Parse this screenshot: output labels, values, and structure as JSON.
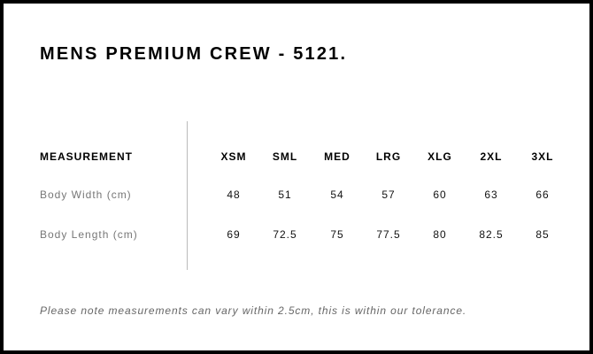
{
  "title": "MENS PREMIUM CREW - 5121.",
  "table": {
    "header_label": "MEASUREMENT",
    "sizes": [
      "XSM",
      "SML",
      "MED",
      "LRG",
      "XLG",
      "2XL",
      "3XL"
    ],
    "rows": [
      {
        "label": "Body Width (cm)",
        "values": [
          "48",
          "51",
          "54",
          "57",
          "60",
          "63",
          "66"
        ]
      },
      {
        "label": "Body Length (cm)",
        "values": [
          "69",
          "72.5",
          "75",
          "77.5",
          "80",
          "82.5",
          "85"
        ]
      }
    ]
  },
  "note": "Please note measurements can vary within 2.5cm, this is within our tolerance."
}
